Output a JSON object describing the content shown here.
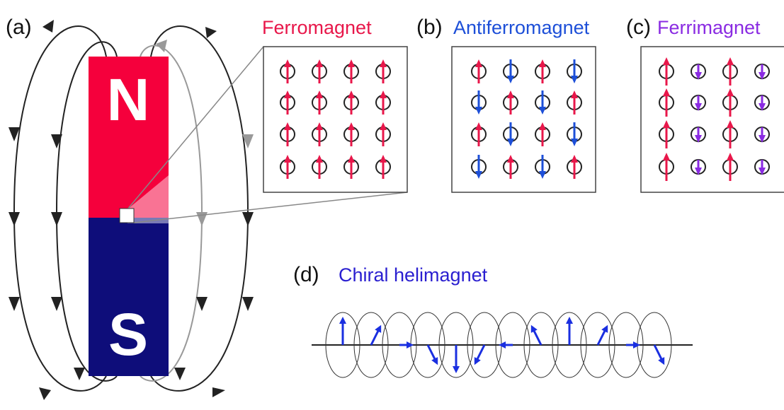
{
  "panels": {
    "a": {
      "label": "(a)",
      "north": "N",
      "south": "S",
      "zoom_title": "Ferromagnet"
    },
    "b": {
      "label": "(b)",
      "title": "Antiferromagnet"
    },
    "c": {
      "label": "(c)",
      "title": "Ferrimagnet"
    },
    "d": {
      "label": "(d)",
      "title": "Chiral helimagnet"
    }
  }
}
